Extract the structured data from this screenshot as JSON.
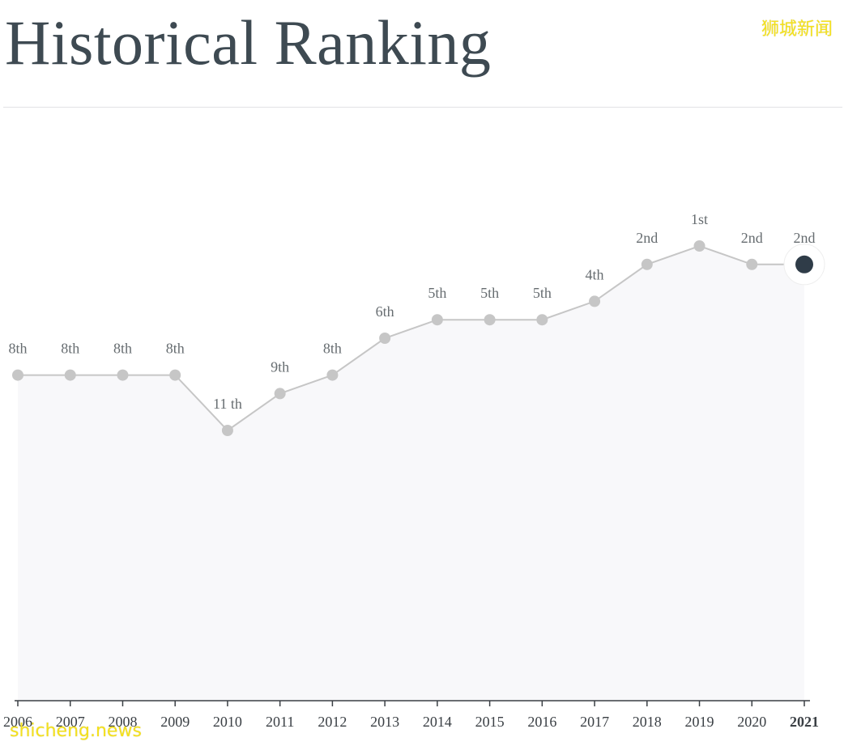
{
  "header": {
    "title": "Historical Ranking"
  },
  "watermarks": {
    "cn": "狮城新闻",
    "en": "shicheng.news"
  },
  "colors": {
    "line": "#c6c6c6",
    "point": "#c6c6c6",
    "current_point": "#2f3c48",
    "area_fill": "#f8f8fa",
    "axis": "#3a3f44",
    "watermark": "#f4e11e"
  },
  "chart_data": {
    "type": "line",
    "x": [
      "2006",
      "2007",
      "2008",
      "2009",
      "2010",
      "2011",
      "2012",
      "2013",
      "2014",
      "2015",
      "2016",
      "2017",
      "2018",
      "2019",
      "2020",
      "2021"
    ],
    "values": [
      8,
      8,
      8,
      8,
      11,
      9,
      8,
      6,
      5,
      5,
      5,
      4,
      2,
      1,
      2,
      2
    ],
    "labels": [
      "8th",
      "8th",
      "8th",
      "8th",
      "11 th",
      "9th",
      "8th",
      "6th",
      "5th",
      "5th",
      "5th",
      "4th",
      "2nd",
      "1st",
      "2nd",
      "2nd"
    ],
    "highlight": "2021",
    "y_inverted": true,
    "grid": false,
    "legend": "none"
  }
}
